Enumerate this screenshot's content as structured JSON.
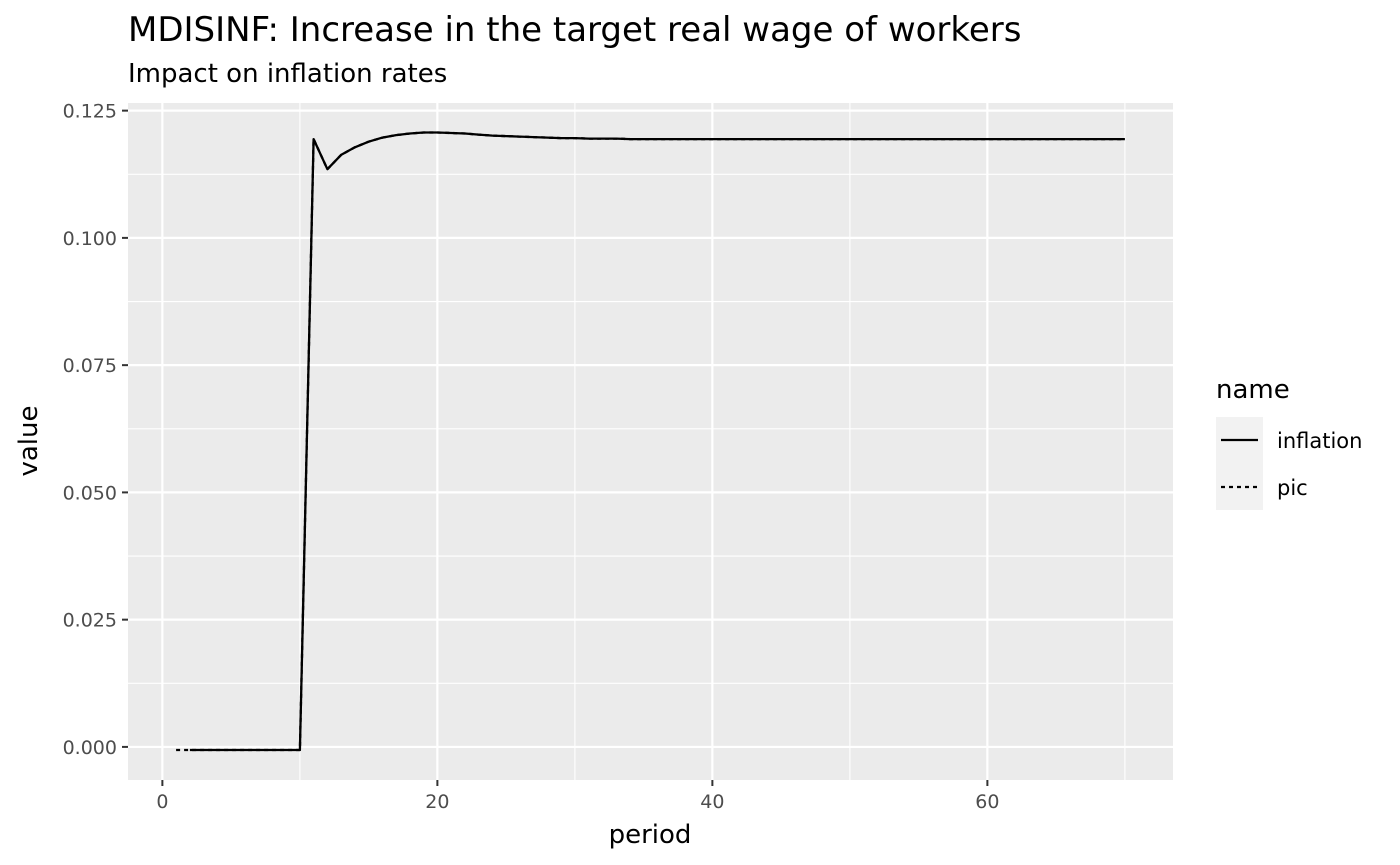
{
  "chart_data": {
    "type": "line",
    "title": "MDISINF: Increase in the target real wage of workers",
    "subtitle": "Impact on inflation rates",
    "xlabel": "period",
    "ylabel": "value",
    "xlim": [
      -2.5,
      73.5
    ],
    "ylim": [
      -0.0065,
      0.1265
    ],
    "x_ticks": [
      0,
      20,
      40,
      60
    ],
    "y_ticks": [
      0.0,
      0.025,
      0.05,
      0.075,
      0.1,
      0.125
    ],
    "x_tick_labels": [
      "0",
      "20",
      "40",
      "60"
    ],
    "y_tick_labels": [
      "0.000",
      "0.025",
      "0.050",
      "0.075",
      "0.100",
      "0.125"
    ],
    "grid": true,
    "legend": {
      "title": "name",
      "position": "right"
    },
    "colors": {
      "panel": "#ebebeb",
      "grid": "#ffffff",
      "line": "#000000",
      "tick": "#333333"
    },
    "series": [
      {
        "name": "inflation",
        "linetype": "solid",
        "x": [
          2,
          3,
          4,
          5,
          6,
          7,
          8,
          9,
          10,
          11,
          12,
          13,
          14,
          15,
          16,
          17,
          18,
          19,
          20,
          21,
          22,
          23,
          24,
          25,
          26,
          27,
          28,
          29,
          30,
          31,
          32,
          33,
          34,
          35,
          36,
          37,
          38,
          39,
          40,
          41,
          42,
          43,
          44,
          45,
          46,
          47,
          48,
          49,
          50,
          51,
          52,
          53,
          54,
          55,
          56,
          57,
          58,
          59,
          60,
          61,
          62,
          63,
          64,
          65,
          66,
          67,
          68,
          69,
          70
        ],
        "values": [
          -0.0006,
          -0.0006,
          -0.0006,
          -0.0006,
          -0.0006,
          -0.0006,
          -0.0006,
          -0.0006,
          -0.0006,
          0.1194,
          0.1135,
          0.1163,
          0.1178,
          0.1189,
          0.1197,
          0.1202,
          0.1205,
          0.1207,
          0.1207,
          0.1206,
          0.1205,
          0.1203,
          0.1201,
          0.12,
          0.1199,
          0.1198,
          0.1197,
          0.1196,
          0.1196,
          0.1195,
          0.1195,
          0.1195,
          0.1194,
          0.1194,
          0.1194,
          0.1194,
          0.1194,
          0.1194,
          0.1194,
          0.1194,
          0.1194,
          0.1194,
          0.1194,
          0.1194,
          0.1194,
          0.1194,
          0.1194,
          0.1194,
          0.1194,
          0.1194,
          0.1194,
          0.1194,
          0.1194,
          0.1194,
          0.1194,
          0.1194,
          0.1194,
          0.1194,
          0.1194,
          0.1194,
          0.1194,
          0.1194,
          0.1194,
          0.1194,
          0.1194,
          0.1194,
          0.1194,
          0.1194,
          0.1194
        ]
      },
      {
        "name": "pic",
        "linetype": "dashed",
        "x": [
          1,
          2,
          3,
          4,
          5,
          6,
          7,
          8,
          9,
          10,
          11,
          12,
          13,
          14,
          15,
          16,
          17,
          18,
          19,
          20,
          21,
          22,
          23,
          24,
          25,
          26,
          27,
          28,
          29,
          30,
          31,
          32,
          33,
          34,
          35,
          36,
          37,
          38,
          39,
          40,
          41,
          42,
          43,
          44,
          45,
          46,
          47,
          48,
          49,
          50,
          51,
          52,
          53,
          54,
          55,
          56,
          57,
          58,
          59,
          60,
          61,
          62,
          63,
          64,
          65,
          66,
          67,
          68,
          69,
          70
        ],
        "values": [
          -0.0006,
          -0.0006,
          -0.0006,
          -0.0006,
          -0.0006,
          -0.0006,
          -0.0006,
          -0.0006,
          -0.0006,
          -0.0006,
          0.1194,
          0.1135,
          0.1163,
          0.1178,
          0.1189,
          0.1197,
          0.1202,
          0.1205,
          0.1207,
          0.1207,
          0.1206,
          0.1205,
          0.1203,
          0.1201,
          0.12,
          0.1199,
          0.1198,
          0.1197,
          0.1196,
          0.1196,
          0.1195,
          0.1195,
          0.1195,
          0.1194,
          0.1194,
          0.1194,
          0.1194,
          0.1194,
          0.1194,
          0.1194,
          0.1194,
          0.1194,
          0.1194,
          0.1194,
          0.1194,
          0.1194,
          0.1194,
          0.1194,
          0.1194,
          0.1194,
          0.1194,
          0.1194,
          0.1194,
          0.1194,
          0.1194,
          0.1194,
          0.1194,
          0.1194,
          0.1194,
          0.1194,
          0.1194,
          0.1194,
          0.1194,
          0.1194,
          0.1194,
          0.1194,
          0.1194,
          0.1194,
          0.1194,
          0.1194
        ]
      }
    ]
  }
}
